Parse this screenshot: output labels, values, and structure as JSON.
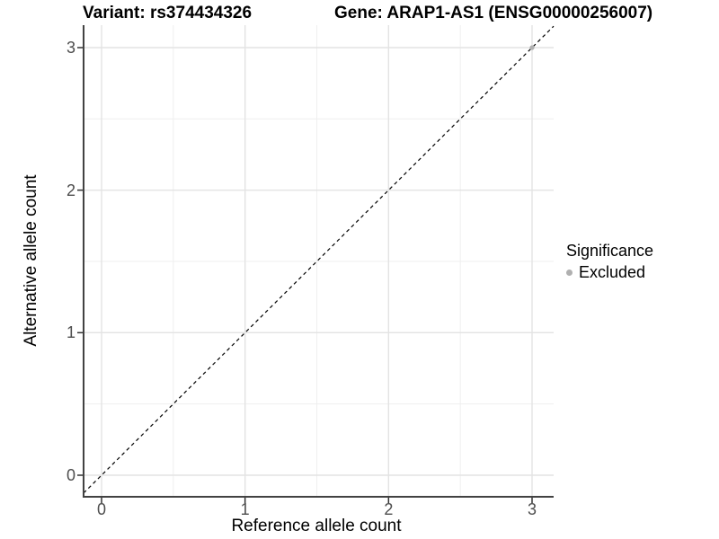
{
  "titles": {
    "variant": "Variant: rs374434326",
    "gene": "Gene: ARAP1-AS1 (ENSG00000256007)"
  },
  "chart_data": {
    "type": "scatter",
    "title_left": "Variant: rs374434326",
    "title_right": "Gene: ARAP1-AS1 (ENSG00000256007)",
    "xlabel": "Reference allele count",
    "ylabel": "Alternative allele count",
    "x_ticks": [
      0,
      1,
      2,
      3
    ],
    "y_ticks": [
      0,
      1,
      2,
      3
    ],
    "xlim": [
      -0.15,
      3.15
    ],
    "ylim": [
      -0.15,
      3.15
    ],
    "grid": {
      "major": [
        0,
        1,
        2,
        3
      ],
      "minor": [
        0.5,
        1.5,
        2.5
      ]
    },
    "identity_line": {
      "style": "dashed",
      "slope": 1,
      "intercept": 0,
      "color": "#000000"
    },
    "series": [
      {
        "name": "Excluded",
        "color": "#b0b0b0",
        "point_radius": 2.6,
        "points": [
          {
            "x": 3,
            "y": 3
          }
        ]
      }
    ],
    "legend": {
      "title": "Significance",
      "position": "right",
      "items": [
        {
          "label": "Excluded",
          "color": "#b0b0b0"
        }
      ]
    },
    "style": {
      "axis_line": "#424242",
      "tick": "#333333",
      "grid_major": "#e3e3e3",
      "grid_minor": "#efefef",
      "background": "#ffffff"
    }
  }
}
